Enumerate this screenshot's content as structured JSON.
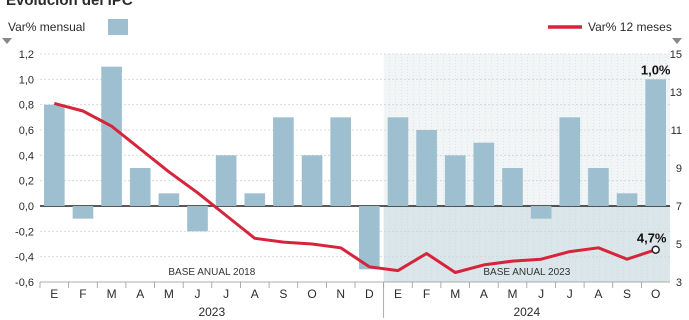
{
  "title": "Evolución del IPC",
  "chart_data": {
    "type": "bar+line",
    "title": "Evolución del IPC",
    "categories": [
      "E",
      "F",
      "M",
      "A",
      "M",
      "J",
      "J",
      "A",
      "S",
      "O",
      "N",
      "D",
      "E",
      "F",
      "M",
      "A",
      "M",
      "J",
      "J",
      "A",
      "S",
      "O"
    ],
    "year_labels": [
      {
        "label": "2023",
        "from": 0,
        "to": 11
      },
      {
        "label": "2024",
        "from": 12,
        "to": 21
      }
    ],
    "series": [
      {
        "name": "Var% mensual",
        "type": "bar",
        "axis": "left",
        "color": "#9dbfcf",
        "values": [
          0.8,
          -0.1,
          1.1,
          0.3,
          0.1,
          -0.2,
          0.4,
          0.1,
          0.7,
          0.4,
          0.7,
          -0.5,
          0.7,
          0.6,
          0.4,
          0.5,
          0.3,
          -0.1,
          0.7,
          0.3,
          0.1,
          1.0
        ]
      },
      {
        "name": "Var% 12 meses",
        "type": "line",
        "axis": "right",
        "color": "#d6243b",
        "values": [
          12.4,
          12.0,
          11.2,
          10.0,
          8.8,
          7.7,
          6.5,
          5.3,
          5.1,
          5.0,
          4.8,
          3.8,
          3.6,
          4.5,
          3.5,
          3.9,
          4.1,
          4.2,
          4.6,
          4.8,
          4.2,
          4.7
        ]
      }
    ],
    "left_axis": {
      "label": "Var% mensual",
      "ylim": [
        -0.6,
        1.2
      ],
      "ticks": [
        "-0,6",
        "-0,4",
        "-0,2",
        "0,0",
        "0,2",
        "0,4",
        "0,6",
        "0,8",
        "1,0",
        "1,2"
      ]
    },
    "right_axis": {
      "label": "Var% 12 meses",
      "ylim": [
        3,
        15
      ],
      "ticks": [
        "3",
        "5",
        "7",
        "9",
        "11",
        "13",
        "15"
      ]
    },
    "base_labels": [
      {
        "text": "BASE ANUAL 2018",
        "from": 0,
        "to": 11
      },
      {
        "text": "BASE ANUAL 2023",
        "from": 12,
        "to": 21
      }
    ],
    "highlight_from_index": 12,
    "callouts": [
      {
        "text": "1,0%",
        "series": 0,
        "index": 21
      },
      {
        "text": "4,7%",
        "series": 1,
        "index": 21
      }
    ],
    "legend_placement": "top",
    "grid": true
  }
}
